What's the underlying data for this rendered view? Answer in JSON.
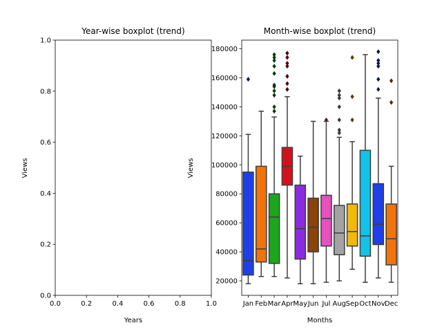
{
  "chart_data": [
    {
      "type": "box",
      "title": "Year-wise boxplot (trend)",
      "xlabel": "Years",
      "ylabel": "Views",
      "xlim": [
        0,
        1
      ],
      "ylim": [
        0,
        1
      ],
      "xticks": [
        "0.0",
        "0.2",
        "0.4",
        "0.6",
        "0.8",
        "1.0"
      ],
      "yticks": [
        "0.0",
        "0.2",
        "0.4",
        "0.6",
        "0.8",
        "1.0"
      ],
      "series": []
    },
    {
      "type": "box",
      "title": "Month-wise boxplot (trend)",
      "xlabel": "Months",
      "ylabel": "Views",
      "ylim": [
        10000,
        186000
      ],
      "yticks": [
        "20000",
        "40000",
        "60000",
        "80000",
        "100000",
        "120000",
        "140000",
        "160000",
        "180000"
      ],
      "categories": [
        "Jan",
        "Feb",
        "Mar",
        "Apr",
        "May",
        "Jun",
        "Jul",
        "Aug",
        "Sep",
        "Oct",
        "Nov",
        "Dec"
      ],
      "colors": [
        "#1f3fea",
        "#f2730a",
        "#1ea51e",
        "#d6101b",
        "#8b2be2",
        "#8a4309",
        "#e84fbf",
        "#a3a3a3",
        "#f1b90c",
        "#12c2e9",
        "#1f3fea",
        "#f2730a"
      ],
      "boxes": [
        {
          "q1": 24000,
          "median": 34000,
          "q3": 95000,
          "whisker_low": 18000,
          "whisker_high": 121000,
          "outliers": [
            159000
          ]
        },
        {
          "q1": 33000,
          "median": 42000,
          "q3": 99000,
          "whisker_low": 23000,
          "whisker_high": 137000,
          "outliers": []
        },
        {
          "q1": 32000,
          "median": 64000,
          "q3": 80000,
          "whisker_low": 23000,
          "whisker_high": 133000,
          "outliers": [
            137000,
            140000,
            148000,
            151000,
            154000,
            155000,
            163000,
            168000,
            172000,
            174000,
            176000
          ]
        },
        {
          "q1": 86000,
          "median": 99000,
          "q3": 112000,
          "whisker_low": 22000,
          "whisker_high": 147000,
          "outliers": [
            152000,
            156000,
            161000,
            168000,
            170000,
            174000,
            177000
          ]
        },
        {
          "q1": 35000,
          "median": 56000,
          "q3": 86000,
          "whisker_low": 18000,
          "whisker_high": 106000,
          "outliers": []
        },
        {
          "q1": 40000,
          "median": 57000,
          "q3": 77000,
          "whisker_low": 18000,
          "whisker_high": 130000,
          "outliers": []
        },
        {
          "q1": 44000,
          "median": 63000,
          "q3": 79000,
          "whisker_low": 19000,
          "whisker_high": 130000,
          "outliers": [
            131000
          ]
        },
        {
          "q1": 38000,
          "median": 53000,
          "q3": 72000,
          "whisker_low": 20000,
          "whisker_high": 119000,
          "outliers": [
            122000,
            124000,
            131000,
            140000,
            146000,
            148000,
            151000
          ]
        },
        {
          "q1": 44000,
          "median": 54000,
          "q3": 73000,
          "whisker_low": 28000,
          "whisker_high": 116000,
          "outliers": [
            131000,
            147000,
            174000
          ]
        },
        {
          "q1": 37000,
          "median": 51000,
          "q3": 110000,
          "whisker_low": 19000,
          "whisker_high": 176000,
          "outliers": []
        },
        {
          "q1": 45000,
          "median": 59000,
          "q3": 87000,
          "whisker_low": 22000,
          "whisker_high": 146000,
          "outliers": [
            152000,
            159000,
            168000,
            170000,
            172000,
            178000
          ]
        },
        {
          "q1": 31000,
          "median": 49000,
          "q3": 73000,
          "whisker_low": 19000,
          "whisker_high": 99000,
          "outliers": [
            143000,
            158000
          ]
        }
      ]
    }
  ]
}
